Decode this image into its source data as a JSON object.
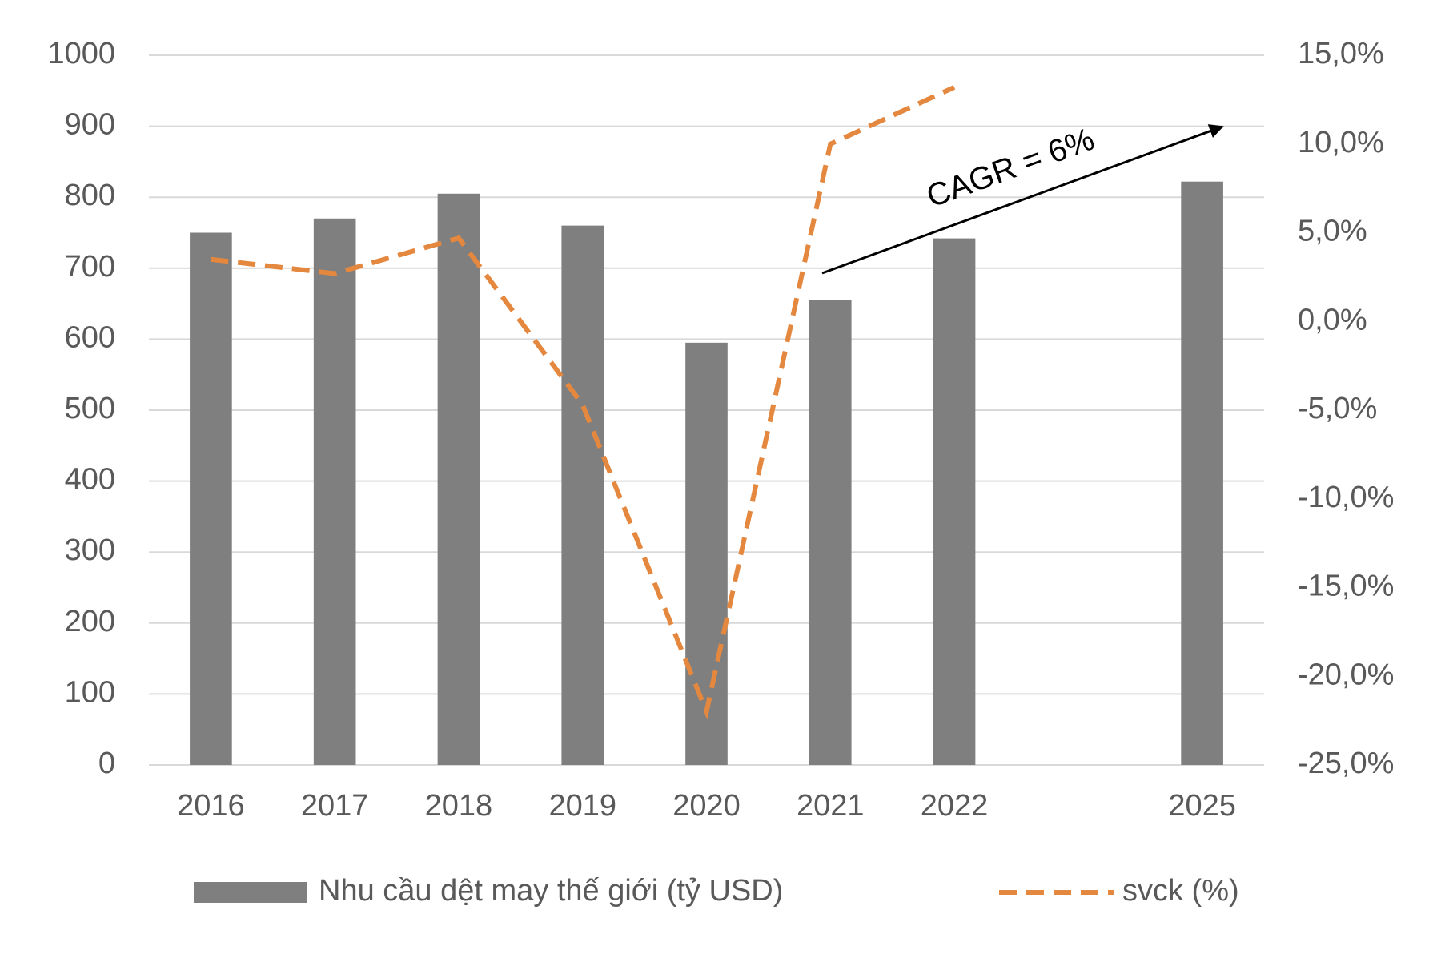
{
  "chart_data": {
    "type": "bar-line",
    "categories": [
      "2016",
      "2017",
      "2018",
      "2019",
      "2020",
      "2021",
      "2022",
      null,
      "2025"
    ],
    "series": [
      {
        "name": "Nhu cầu dệt may thế giới (tỷ USD)",
        "type": "bar",
        "color": "#7f7f7f",
        "values": [
          750,
          770,
          805,
          760,
          595,
          655,
          742,
          null,
          822
        ]
      },
      {
        "name": "svck (%)",
        "type": "line",
        "axis": "y2",
        "color": "#e5883f",
        "dashed": true,
        "values": [
          3.5,
          2.7,
          4.7,
          -4.7,
          -22,
          10,
          13.2,
          null,
          null
        ]
      }
    ],
    "ylim": [
      0,
      1000
    ],
    "yticks": [
      0,
      100,
      200,
      300,
      400,
      500,
      600,
      700,
      800,
      900,
      1000
    ],
    "y2lim": [
      -25,
      15
    ],
    "y2ticks": [
      {
        "value": -25,
        "label": "-25,0%"
      },
      {
        "value": -20,
        "label": "-20,0%"
      },
      {
        "value": -15,
        "label": "-15,0%"
      },
      {
        "value": -10,
        "label": "-10,0%"
      },
      {
        "value": -5,
        "label": "-5,0%"
      },
      {
        "value": 0,
        "label": "0,0%"
      },
      {
        "value": 5,
        "label": "5,0%"
      },
      {
        "value": 10,
        "label": "10,0%"
      },
      {
        "value": 15,
        "label": "15,0%"
      }
    ],
    "grid": true,
    "legend": "bottom",
    "annotations": [
      {
        "text": "CAGR = 6%"
      }
    ]
  }
}
